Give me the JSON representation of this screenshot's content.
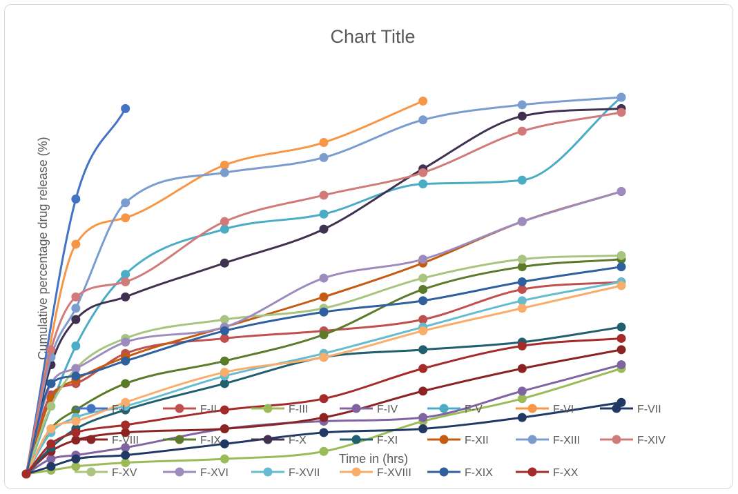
{
  "chart_data": {
    "type": "line",
    "title": "Chart Title",
    "xlabel": "Time in (hrs)",
    "ylabel": "Cumulative percentage drug release (%)",
    "smooth": true,
    "markers": true,
    "xlim": [
      0,
      24
    ],
    "ylim": [
      0,
      100
    ],
    "grid": false,
    "legend_position": "bottom",
    "series": [
      {
        "name": "F-I",
        "color": "#4472c4",
        "x": [
          0,
          2,
          4
        ],
        "y": [
          0,
          73,
          97
        ]
      },
      {
        "name": "F-II",
        "color": "#c0504d",
        "x": [
          0,
          1,
          2,
          4,
          8,
          12,
          16,
          20,
          24
        ],
        "y": [
          0,
          21,
          24,
          32,
          36,
          38,
          41,
          49,
          51
        ]
      },
      {
        "name": "F-III",
        "color": "#9bbb59",
        "x": [
          0,
          1,
          2,
          4,
          8,
          12,
          16,
          20,
          24
        ],
        "y": [
          0,
          1,
          2,
          3,
          4,
          6,
          14,
          20,
          28
        ]
      },
      {
        "name": "F-IV",
        "color": "#8064a2",
        "x": [
          0,
          1,
          2,
          4,
          8,
          12,
          16,
          20,
          24
        ],
        "y": [
          0,
          4,
          5,
          7,
          12,
          14,
          15,
          22,
          29
        ]
      },
      {
        "name": "F-V",
        "color": "#4bacc6",
        "x": [
          0,
          2,
          4,
          8,
          12,
          16,
          20,
          24
        ],
        "y": [
          0,
          34,
          53,
          65,
          69,
          77,
          78,
          100
        ]
      },
      {
        "name": "F-VI",
        "color": "#f79646",
        "x": [
          0,
          2,
          4,
          8,
          12,
          16
        ],
        "y": [
          0,
          61,
          68,
          82,
          88,
          99
        ]
      },
      {
        "name": "F-VII",
        "color": "#1f3864",
        "x": [
          0,
          1,
          2,
          4,
          8,
          12,
          16,
          20,
          24
        ],
        "y": [
          0,
          2,
          4,
          5,
          8,
          11,
          12,
          15,
          19
        ]
      },
      {
        "name": "F-VIII",
        "color": "#8b2323",
        "x": [
          0,
          1,
          2,
          4,
          8,
          12,
          16,
          20,
          24
        ],
        "y": [
          0,
          6,
          9,
          11,
          12,
          15,
          22,
          28,
          33
        ]
      },
      {
        "name": "F-IX",
        "color": "#5b7a2a",
        "x": [
          0,
          1,
          2,
          4,
          8,
          12,
          16,
          20,
          24
        ],
        "y": [
          0,
          12,
          17,
          24,
          30,
          37,
          49,
          55,
          57
        ]
      },
      {
        "name": "F-X",
        "color": "#403151",
        "x": [
          0,
          1,
          2,
          4,
          8,
          12,
          16,
          20,
          24
        ],
        "y": [
          0,
          29,
          41,
          47,
          56,
          65,
          81,
          95,
          97
        ]
      },
      {
        "name": "F-XI",
        "color": "#215e6e",
        "x": [
          0,
          1,
          2,
          4,
          8,
          12,
          16,
          20,
          24
        ],
        "y": [
          0,
          7,
          12,
          17,
          24,
          31,
          33,
          35,
          39
        ]
      },
      {
        "name": "F-XII",
        "color": "#c55a11",
        "x": [
          0,
          1,
          2,
          4,
          8,
          12,
          16,
          20,
          24
        ],
        "y": [
          0,
          20,
          25,
          31,
          39,
          47,
          56,
          67,
          75
        ]
      },
      {
        "name": "F-XIII",
        "color": "#7a9ccf",
        "x": [
          0,
          1,
          2,
          4,
          8,
          12,
          16,
          20,
          24
        ],
        "y": [
          0,
          31,
          44,
          72,
          80,
          84,
          94,
          98,
          100
        ]
      },
      {
        "name": "F-XIV",
        "color": "#d07a7a",
        "x": [
          0,
          1,
          2,
          4,
          8,
          12,
          16,
          20,
          24
        ],
        "y": [
          0,
          33,
          47,
          51,
          67,
          74,
          80,
          91,
          96
        ]
      },
      {
        "name": "F-XV",
        "color": "#a9c47f",
        "x": [
          0,
          1,
          2,
          4,
          8,
          12,
          16,
          20,
          24
        ],
        "y": [
          0,
          18,
          28,
          36,
          41,
          44,
          52,
          57,
          58
        ]
      },
      {
        "name": "F-XVI",
        "color": "#9d8bbd",
        "x": [
          0,
          1,
          2,
          4,
          8,
          12,
          16,
          20,
          24
        ],
        "y": [
          0,
          24,
          28,
          35,
          39,
          52,
          57,
          67,
          75
        ]
      },
      {
        "name": "F-XVII",
        "color": "#66bccf",
        "x": [
          0,
          1,
          2,
          4,
          8,
          12,
          16,
          20,
          24
        ],
        "y": [
          0,
          11,
          15,
          18,
          26,
          32,
          39,
          46,
          51
        ]
      },
      {
        "name": "F-XVIII",
        "color": "#f9ad6b",
        "x": [
          0,
          1,
          2,
          4,
          8,
          12,
          16,
          20,
          24
        ],
        "y": [
          0,
          12,
          14,
          19,
          27,
          31,
          38,
          44,
          50
        ]
      },
      {
        "name": "F-XIX",
        "color": "#2e5f9e",
        "x": [
          0,
          1,
          2,
          4,
          8,
          12,
          16,
          20,
          24
        ],
        "y": [
          0,
          24,
          26,
          30,
          38,
          43,
          46,
          51,
          55
        ]
      },
      {
        "name": "F-XX",
        "color": "#a52a2a",
        "x": [
          0,
          1,
          2,
          4,
          8,
          12,
          16,
          20,
          24
        ],
        "y": [
          0,
          8,
          11,
          13,
          17,
          20,
          28,
          34,
          36
        ]
      }
    ]
  }
}
